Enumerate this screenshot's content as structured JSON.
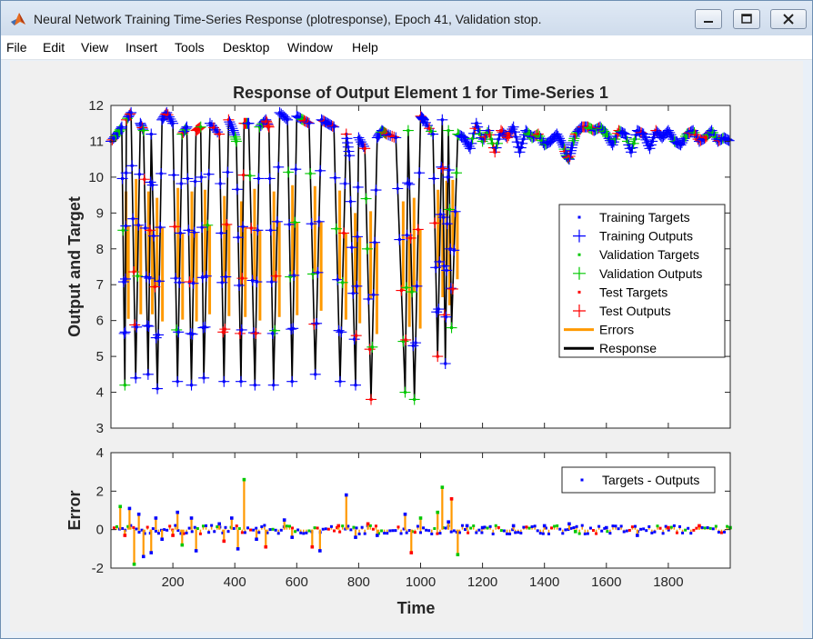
{
  "window": {
    "title": "Neural Network Training Time-Series Response (plotresponse), Epoch 41, Validation stop.",
    "controls": [
      "minimize",
      "maximize",
      "close"
    ]
  },
  "menubar": {
    "items": [
      "File",
      "Edit",
      "View",
      "Insert",
      "Tools",
      "Desktop",
      "Window",
      "Help"
    ]
  },
  "colors": {
    "training": "#0000ff",
    "validation": "#00c800",
    "test": "#ff0000",
    "errors": "#ff9900",
    "response": "#000000"
  },
  "chart_data": [
    {
      "type": "line",
      "title": "Response of Output Element 1 for Time-Series 1",
      "xlabel": "",
      "ylabel": "Output and Target",
      "xlim": [
        0,
        2000
      ],
      "ylim": [
        3,
        12
      ],
      "yticks": [
        3,
        4,
        5,
        6,
        7,
        8,
        9,
        10,
        11,
        12
      ],
      "grid": false,
      "legend_position": "center-right",
      "legend": [
        {
          "label": "Training Targets",
          "marker": "dot",
          "color": "#0000ff"
        },
        {
          "label": "Training Outputs",
          "marker": "plus",
          "color": "#0000ff"
        },
        {
          "label": "Validation Targets",
          "marker": "dot",
          "color": "#00c800"
        },
        {
          "label": "Validation Outputs",
          "marker": "plus",
          "color": "#00c800"
        },
        {
          "label": "Test Targets",
          "marker": "dot",
          "color": "#ff0000"
        },
        {
          "label": "Test Outputs",
          "marker": "plus",
          "color": "#ff0000"
        },
        {
          "label": "Errors",
          "marker": "line",
          "color": "#ff9900"
        },
        {
          "label": "Response",
          "marker": "line",
          "color": "#000000"
        }
      ],
      "series": [
        {
          "name": "Response",
          "x": [
            0,
            20,
            35,
            45,
            50,
            65,
            80,
            95,
            105,
            120,
            130,
            150,
            165,
            180,
            200,
            215,
            230,
            245,
            260,
            275,
            290,
            300,
            320,
            350,
            365,
            380,
            395,
            405,
            420,
            430,
            445,
            465,
            480,
            500,
            510,
            525,
            545,
            570,
            585,
            600,
            620,
            640,
            660,
            680,
            700,
            720,
            740,
            760,
            770,
            790,
            800,
            820,
            840,
            860,
            875,
            890,
            920,
            950,
            960,
            980,
            1000,
            1010,
            1040,
            1055,
            1070,
            1080,
            1090,
            1100,
            1120,
            1140,
            1160,
            1180,
            1200,
            1220,
            1240,
            1260,
            1280,
            1300,
            1320,
            1340,
            1360,
            1380,
            1400,
            1420,
            1440,
            1460,
            1470,
            1480,
            1490,
            1500,
            1520,
            1540,
            1560,
            1580,
            1600,
            1620,
            1640,
            1660,
            1680,
            1700,
            1720,
            1740,
            1760,
            1780,
            1800,
            1820,
            1840,
            1860,
            1880,
            1900,
            1920,
            1940,
            1960,
            1980,
            2000
          ],
          "y": [
            11,
            11.2,
            11.4,
            4.2,
            11.6,
            11.8,
            4.4,
            11.5,
            11.3,
            4.5,
            11.2,
            4.1,
            11.6,
            11.8,
            11.5,
            4.3,
            11.2,
            11.4,
            4.2,
            11.3,
            11.4,
            4.4,
            11.5,
            11.2,
            4.3,
            11.6,
            11.3,
            11,
            4.3,
            11.5,
            11.5,
            4.2,
            11.4,
            11.6,
            11.4,
            4.2,
            11.8,
            11.6,
            4.3,
            11.7,
            11.6,
            11.5,
            4.5,
            11.6,
            11.5,
            11.4,
            4.3,
            11.2,
            10.6,
            4.2,
            11.1,
            10.8,
            3.8,
            11.1,
            11.3,
            11.2,
            11.1,
            4,
            11.3,
            3.8,
            11.7,
            11.6,
            11.2,
            5,
            11.6,
            4.8,
            11.3,
            5.8,
            11.2,
            11.1,
            10.8,
            11.5,
            11,
            11.3,
            10.7,
            11.3,
            11.1,
            11.4,
            10.7,
            11.3,
            11.1,
            11.2,
            10.9,
            11,
            11.2,
            10.9,
            10.6,
            10.5,
            10.9,
            11.2,
            11.4,
            11.4,
            11.3,
            11.4,
            11.2,
            10.9,
            11.3,
            11.2,
            10.7,
            11.3,
            11.2,
            10.8,
            11.3,
            11.1,
            11.3,
            11,
            10.9,
            11.2,
            11.3,
            11,
            11.1,
            11.3,
            11,
            11.1,
            11
          ]
        }
      ]
    },
    {
      "type": "line",
      "title": "",
      "xlabel": "Time",
      "ylabel": "Error",
      "xlim": [
        0,
        2000
      ],
      "ylim": [
        -2,
        4
      ],
      "yticks": [
        -2,
        0,
        2,
        4
      ],
      "xticks": [
        200,
        400,
        600,
        800,
        1000,
        1200,
        1400,
        1600,
        1800
      ],
      "grid": false,
      "legend_position": "top-right",
      "legend": [
        {
          "label": "Targets - Outputs",
          "marker": "dot",
          "color": "#0000ff"
        }
      ],
      "series": [
        {
          "name": "Targets - Outputs",
          "x": [
            30,
            45,
            60,
            75,
            90,
            105,
            130,
            145,
            165,
            200,
            215,
            230,
            260,
            275,
            350,
            365,
            390,
            410,
            430,
            470,
            500,
            560,
            585,
            650,
            675,
            735,
            760,
            790,
            830,
            860,
            950,
            970,
            1000,
            1055,
            1070,
            1090,
            1100,
            1120,
            1150,
            1200,
            1300,
            1400,
            1480,
            1500,
            1600,
            1700,
            1800,
            1900,
            2000
          ],
          "y": [
            1.2,
            -0.3,
            1.1,
            -1.8,
            0.8,
            -1.4,
            -1.2,
            0.6,
            -0.5,
            -0.3,
            0.9,
            -0.8,
            0.6,
            -1.1,
            0.3,
            -0.6,
            0.6,
            -1,
            2.6,
            -0.5,
            -0.9,
            0.5,
            -0.4,
            -0.9,
            -1.1,
            0.2,
            1.8,
            -0.4,
            0.3,
            -0.3,
            0.8,
            -1.2,
            0.6,
            0.9,
            2.2,
            0.4,
            1.6,
            -1.3,
            0.2,
            0.1,
            0.2,
            0.2,
            0.3,
            -0.1,
            0.1,
            -0.3,
            0.1,
            0.2,
            0.1
          ]
        }
      ]
    }
  ]
}
